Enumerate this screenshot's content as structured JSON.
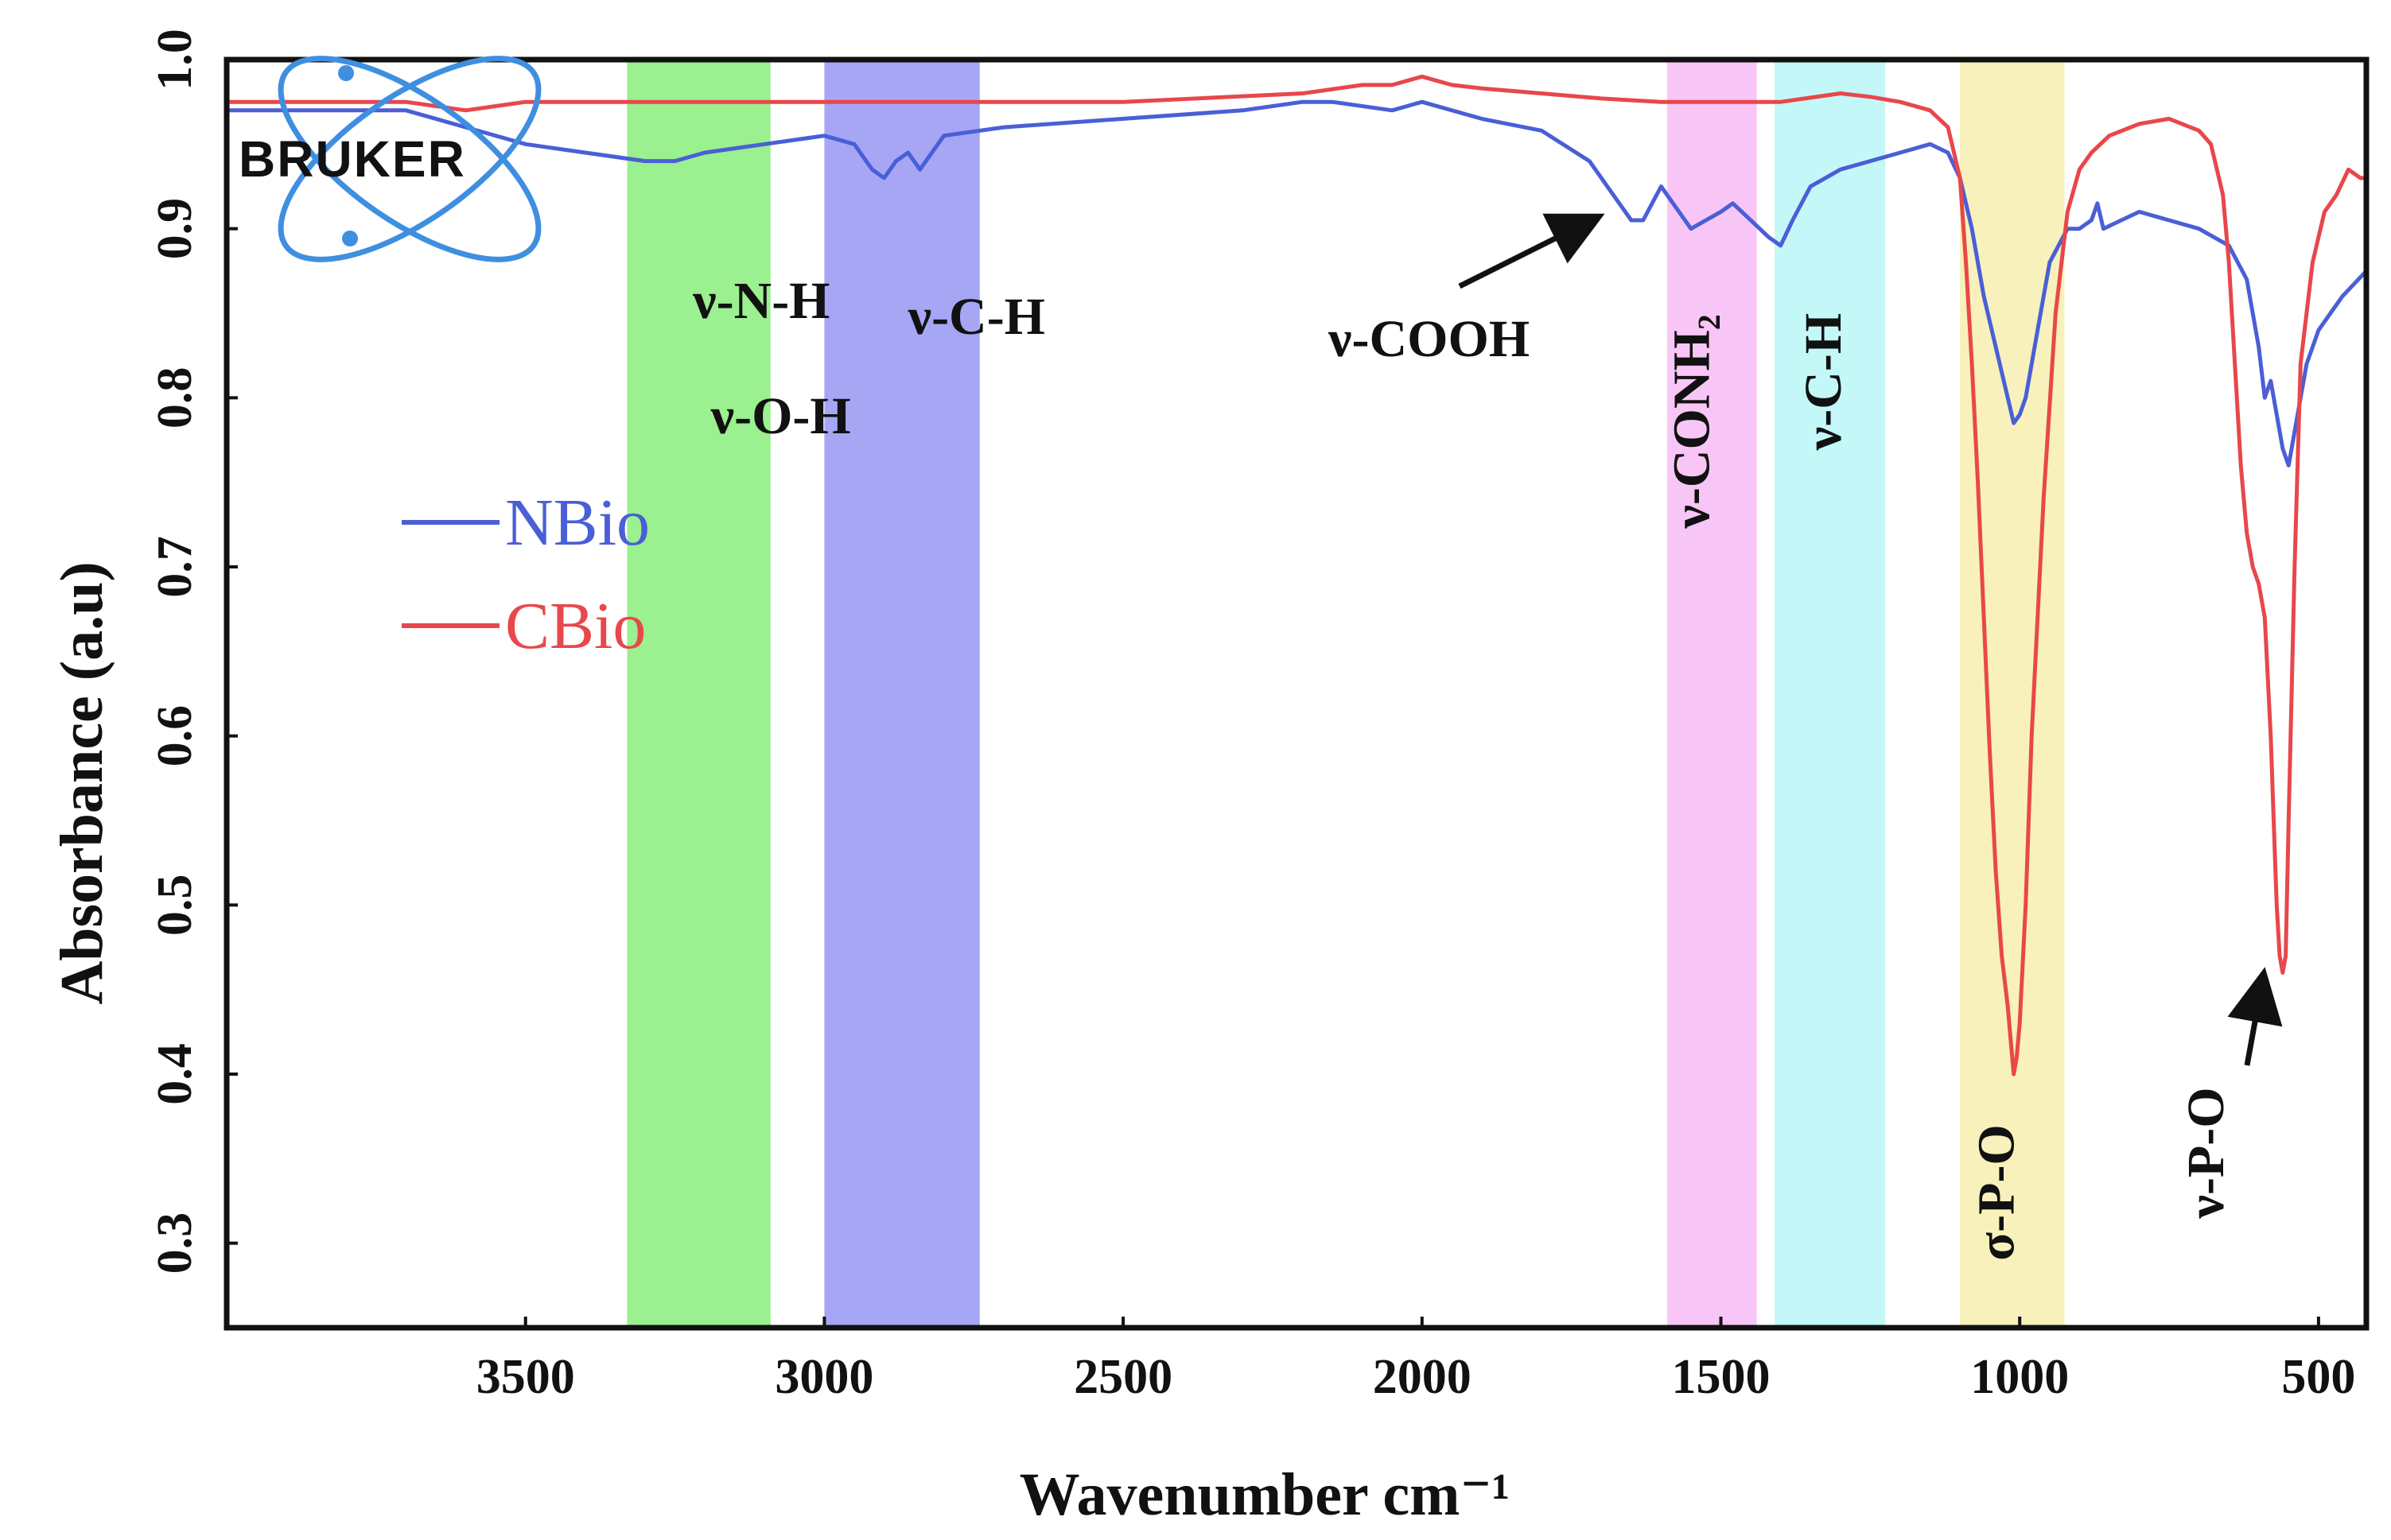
{
  "chart_data": {
    "type": "line",
    "title": "",
    "xlabel": "Wavenumber cm⁻¹",
    "ylabel": "Absorbance (a.u)",
    "xlim": [
      4000,
      420
    ],
    "ylim": [
      0.25,
      1.0
    ],
    "x_ticks": [
      3500,
      3000,
      2500,
      2000,
      1500,
      1000,
      500
    ],
    "x_tick_labels": [
      "3500",
      "3000",
      "2500",
      "2000",
      "1500",
      "1000",
      "500"
    ],
    "y_ticks": [
      0.3,
      0.4,
      0.5,
      0.6,
      0.7,
      0.8,
      0.9,
      1.0
    ],
    "y_tick_labels": [
      "0.3",
      "0.4",
      "0.5",
      "0.6",
      "0.7",
      "0.8",
      "0.9",
      "1.0"
    ],
    "legend": {
      "placement": "center-left",
      "entries": [
        "NBio",
        "CBio"
      ]
    },
    "colors": {
      "NBio": "#4a5fd6",
      "CBio": "#e8474b"
    },
    "logo_text": "BRUKER",
    "series": [
      {
        "name": "NBio",
        "x": [
          4000,
          3700,
          3600,
          3500,
          3400,
          3300,
          3250,
          3200,
          3100,
          3000,
          2950,
          2920,
          2900,
          2880,
          2860,
          2840,
          2800,
          2700,
          2500,
          2300,
          2200,
          2150,
          2050,
          2000,
          1900,
          1800,
          1720,
          1680,
          1650,
          1630,
          1600,
          1580,
          1550,
          1500,
          1480,
          1450,
          1420,
          1400,
          1380,
          1350,
          1300,
          1250,
          1200,
          1150,
          1120,
          1100,
          1080,
          1060,
          1040,
          1020,
          1010,
          1000,
          990,
          970,
          950,
          920,
          900,
          880,
          870,
          860,
          830,
          800,
          750,
          700,
          650,
          620,
          600,
          590,
          580,
          570,
          560,
          550,
          540,
          520,
          500,
          460,
          420
        ],
        "y": [
          0.97,
          0.97,
          0.96,
          0.95,
          0.945,
          0.94,
          0.94,
          0.945,
          0.95,
          0.955,
          0.95,
          0.935,
          0.93,
          0.94,
          0.945,
          0.935,
          0.955,
          0.96,
          0.965,
          0.97,
          0.975,
          0.975,
          0.97,
          0.975,
          0.965,
          0.958,
          0.94,
          0.92,
          0.905,
          0.905,
          0.925,
          0.915,
          0.9,
          0.91,
          0.915,
          0.905,
          0.895,
          0.89,
          0.905,
          0.925,
          0.935,
          0.94,
          0.945,
          0.95,
          0.945,
          0.93,
          0.9,
          0.86,
          0.83,
          0.8,
          0.785,
          0.79,
          0.8,
          0.84,
          0.88,
          0.9,
          0.9,
          0.905,
          0.915,
          0.9,
          0.905,
          0.91,
          0.905,
          0.9,
          0.89,
          0.87,
          0.83,
          0.8,
          0.81,
          0.79,
          0.77,
          0.76,
          0.78,
          0.82,
          0.84,
          0.86,
          0.875
        ]
      },
      {
        "name": "CBio",
        "x": [
          4000,
          3700,
          3600,
          3500,
          3000,
          2500,
          2200,
          2100,
          2050,
          2000,
          1950,
          1900,
          1800,
          1700,
          1600,
          1500,
          1400,
          1300,
          1250,
          1200,
          1150,
          1120,
          1100,
          1090,
          1080,
          1070,
          1060,
          1050,
          1040,
          1030,
          1020,
          1015,
          1010,
          1005,
          1000,
          990,
          980,
          960,
          940,
          920,
          900,
          880,
          850,
          800,
          750,
          700,
          680,
          660,
          650,
          640,
          630,
          620,
          610,
          600,
          590,
          580,
          575,
          570,
          565,
          560,
          555,
          550,
          540,
          530,
          510,
          490,
          470,
          450,
          430,
          420
        ],
        "y": [
          0.975,
          0.975,
          0.97,
          0.975,
          0.975,
          0.975,
          0.98,
          0.985,
          0.985,
          0.99,
          0.985,
          0.983,
          0.98,
          0.977,
          0.975,
          0.975,
          0.975,
          0.98,
          0.978,
          0.975,
          0.97,
          0.96,
          0.93,
          0.88,
          0.82,
          0.75,
          0.67,
          0.59,
          0.52,
          0.47,
          0.44,
          0.42,
          0.4,
          0.41,
          0.43,
          0.5,
          0.6,
          0.74,
          0.85,
          0.91,
          0.935,
          0.945,
          0.955,
          0.962,
          0.965,
          0.958,
          0.95,
          0.92,
          0.88,
          0.82,
          0.76,
          0.72,
          0.7,
          0.69,
          0.67,
          0.6,
          0.55,
          0.5,
          0.47,
          0.46,
          0.47,
          0.55,
          0.7,
          0.82,
          0.88,
          0.91,
          0.92,
          0.935,
          0.93,
          0.93
        ]
      }
    ],
    "bands": [
      {
        "name": "band-nh-oh",
        "x_from": 3330,
        "x_to": 3090,
        "color": "#9bf08f",
        "labels": [
          "ν-N-H",
          "ν-O-H"
        ]
      },
      {
        "name": "band-ch-1",
        "x_from": 3000,
        "x_to": 2740,
        "color": "#a6a6f5",
        "labels": [
          "ν-C-H"
        ]
      },
      {
        "name": "band-conh2",
        "x_from": 1590,
        "x_to": 1440,
        "color": "#f8c6f6",
        "labels": [
          "ν-CONH₂"
        ]
      },
      {
        "name": "band-ch-2",
        "x_from": 1410,
        "x_to": 1225,
        "color": "#c4f8f8",
        "labels": [
          "ν-C-H"
        ]
      },
      {
        "name": "band-po-sigma",
        "x_from": 1100,
        "x_to": 925,
        "color": "#f8f1bc",
        "labels": [
          "σ-P-O"
        ]
      }
    ],
    "annotations": [
      {
        "name": "annotation-cooh",
        "text": "ν-COOH"
      },
      {
        "name": "annotation-po-nu",
        "text": "ν-P-O"
      }
    ]
  }
}
